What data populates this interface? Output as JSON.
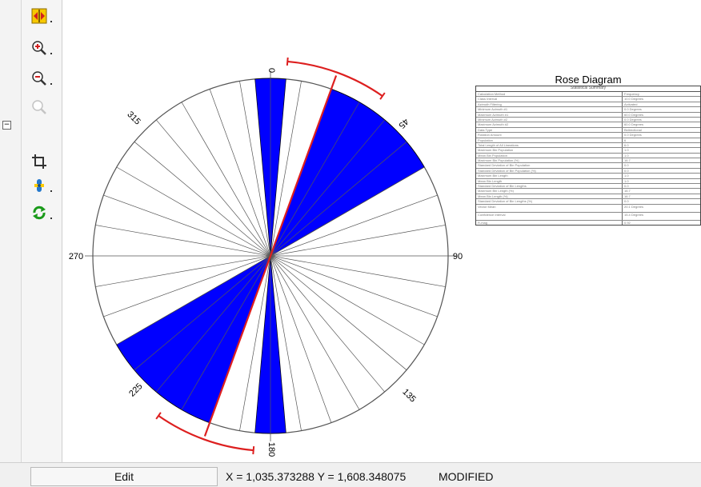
{
  "left_panel": {
    "collapse_glyph": "−"
  },
  "toolbar": {
    "tools": [
      {
        "name": "full-extent-icon",
        "color": "#d22020"
      },
      {
        "name": "zoom-in-icon",
        "color": "#d22020"
      },
      {
        "name": "zoom-out-icon",
        "color": "#d22020"
      },
      {
        "name": "zoom-disabled-icon",
        "color": "#bbbbbb"
      },
      {
        "name": "crop-icon",
        "color": "#333333"
      },
      {
        "name": "pan-icon",
        "color": "#2277cc"
      },
      {
        "name": "refresh-icon",
        "color": "#1a9a1a"
      }
    ]
  },
  "rose": {
    "axis_labels": {
      "north": "0",
      "east": "90",
      "south": "180",
      "west": "270",
      "ne": "45",
      "se": "135",
      "sw": "225",
      "nw": "315"
    },
    "petal_color": "#0000ff",
    "mean_line_color": "#dd1f1f",
    "petals": [
      {
        "from": 355,
        "to": 5,
        "value": 1.0
      },
      {
        "from": 20,
        "to": 60,
        "value": 1.0
      },
      {
        "from": 175,
        "to": 185,
        "value": 1.0
      },
      {
        "from": 200,
        "to": 240,
        "value": 1.0
      }
    ],
    "mean_direction": 20,
    "confidence_arc": [
      5,
      35
    ],
    "rings": 4,
    "spoke_step": 10
  },
  "stats": {
    "title": "Rose Diagram",
    "subtitle": "Statistical Summary",
    "rows": [
      {
        "label": "Calculation Method",
        "value": "Frequency"
      },
      {
        "label": "Class Interval",
        "value": "10.0 Degrees"
      },
      {
        "label": "Azimuth Filtering",
        "value": "Activated"
      },
      {
        "label": "Minimum Azimuth #1",
        "value": "0.0 Degrees"
      },
      {
        "label": "Maximum Azimuth #1",
        "value": "60.0 Degrees"
      },
      {
        "label": "Minimum Azimuth #2",
        "value": "0.0 Degrees"
      },
      {
        "label": "Maximum Azimuth #2",
        "value": "60.0 Degrees"
      },
      {
        "label": "Data Type",
        "value": "Bidirectional"
      },
      {
        "label": "Rotation Amount",
        "value": "0.0 Degrees"
      },
      {
        "label": "Population",
        "value": "6"
      },
      {
        "label": "Total Length of All Lineations",
        "value": "6.0"
      },
      {
        "label": "Maximum Bin Population",
        "value": "1.0"
      },
      {
        "label": "Mean Bin Population",
        "value": "1.0"
      },
      {
        "label": "Maximum Bin Population (%)",
        "value": "16.7"
      },
      {
        "label": "Standard Deviation of Bin Population",
        "value": "0.0"
      },
      {
        "label": "Standard Deviation of Bin Population (%)",
        "value": "0.0"
      },
      {
        "label": "Maximum Bin Length",
        "value": "1.0"
      },
      {
        "label": "Mean Bin Length",
        "value": "1.0"
      },
      {
        "label": "Standard Deviation of Bin Lengths",
        "value": "0.0"
      },
      {
        "label": "Maximum Bin Length (%)",
        "value": "16.7"
      },
      {
        "label": "Mean Bin Length (%)",
        "value": "16.7"
      },
      {
        "label": "Standard Deviation of Bin Lengths (%)",
        "value": "0.0"
      },
      {
        "label": "Vector Mean",
        "value": "20.1 Degrees",
        "tall": true
      },
      {
        "label": "Confidence Interval",
        "value": "15.4 Degrees",
        "tall": true
      },
      {
        "label": "R-mag",
        "value": "0.92"
      }
    ]
  },
  "status": {
    "mode": "Edit",
    "coords": "X = 1,035.373288  Y = 1,608.348075",
    "state": "MODIFIED"
  }
}
